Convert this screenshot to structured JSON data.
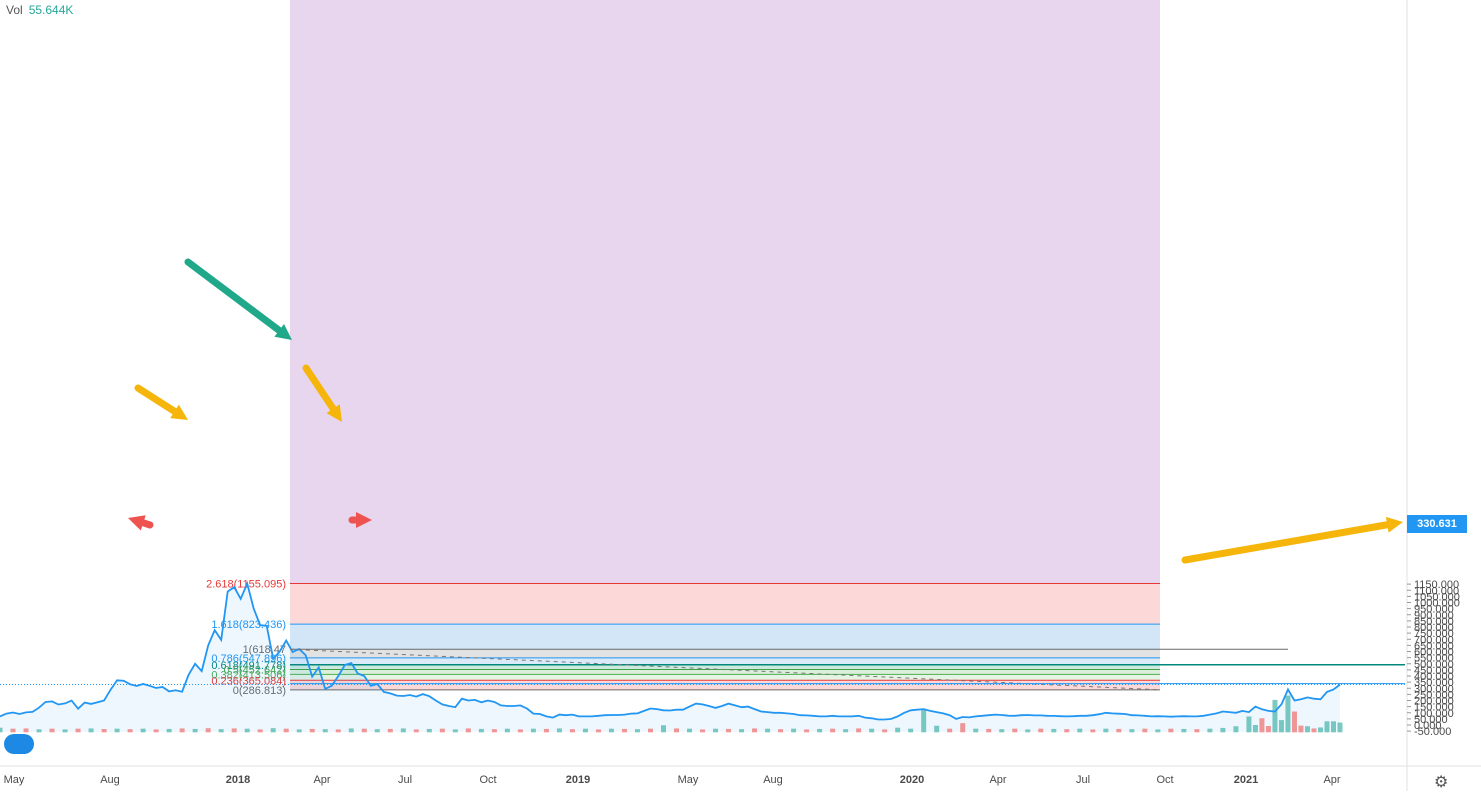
{
  "legend": {
    "label": "Vol",
    "value": "55.644K"
  },
  "current_price": "330.631",
  "colors": {
    "price_line": "#2196f3",
    "vol_up": "#26a69a",
    "vol_down": "#ef5350",
    "arrow_yellow": "#f5b50a",
    "arrow_green": "#1fa88a",
    "arrow_red": "#ef5350"
  },
  "icons": [
    "tradingview-logo-icon",
    "settings-gear-icon"
  ],
  "chart_data": {
    "type": "line",
    "y_axis": {
      "ticks": [
        "1150.000",
        "1100.000",
        "1050.000",
        "1000.000",
        "950.000",
        "900.000",
        "850.000",
        "800.000",
        "750.000",
        "700.000",
        "650.000",
        "600.000",
        "550.000",
        "500.000",
        "450.000",
        "400.000",
        "350.000",
        "300.000",
        "250.000",
        "200.000",
        "150.000",
        "100.000",
        "50.000",
        "0.000",
        "-50.000"
      ],
      "range": [
        -80,
        1180
      ]
    },
    "x_axis": {
      "ticks": [
        "May",
        "Aug",
        "2018",
        "Apr",
        "Jul",
        "Oct",
        "2019",
        "May",
        "Aug",
        "2020",
        "Apr",
        "Jul",
        "Oct",
        "2021",
        "Apr"
      ]
    },
    "fib_levels": [
      {
        "ratio": "2.618",
        "value": 1155.095,
        "label": "2.618(1155.095)",
        "color": "#e53935",
        "fill": "#e8d6ef"
      },
      {
        "ratio": "1.618",
        "value": 823.436,
        "label": "1.618(823.436)",
        "color": "#2196f3",
        "fill": "#fcd8d8"
      },
      {
        "ratio": "1",
        "value": 618.47,
        "label": "1(618.47",
        "color": "#6a6a6a",
        "fill": "#d2e6f8"
      },
      {
        "ratio": "0.786",
        "value": 547.896,
        "label": "0.786(547.896)",
        "color": "#2196f3",
        "fill": "#e2e2e2"
      },
      {
        "ratio": "0.618",
        "value": 491.778,
        "label": "0.618(491.778)",
        "color": "#00897b",
        "fill": "#dbeaf9"
      },
      {
        "ratio": "0.5",
        "value": 452.642,
        "label": "0.5(452.642)",
        "color": "#43a047",
        "fill": "#cdeade"
      },
      {
        "ratio": "0.382",
        "value": 413.506,
        "label": "0.382(413.506)",
        "color": "#4caf50",
        "fill": "#dcefdc"
      },
      {
        "ratio": "0.236",
        "value": 365.084,
        "label": "0.236(365.084)",
        "color": "#e53935",
        "fill": "#e6f4e6"
      },
      {
        "ratio": "0",
        "value": 286.813,
        "label": "0(286.813)",
        "color": "#6a6a6a",
        "fill": "#fcd8d8"
      }
    ],
    "price_series": [
      [
        0,
        70
      ],
      [
        1,
        93
      ],
      [
        2,
        102
      ],
      [
        3,
        90
      ],
      [
        4,
        103
      ],
      [
        5,
        107
      ],
      [
        6,
        141
      ],
      [
        7,
        188
      ],
      [
        8,
        193
      ],
      [
        9,
        167
      ],
      [
        10,
        176
      ],
      [
        11,
        199
      ],
      [
        12,
        133
      ],
      [
        13,
        183
      ],
      [
        14,
        172
      ],
      [
        15,
        186
      ],
      [
        16,
        200
      ],
      [
        17,
        288
      ],
      [
        18,
        365
      ],
      [
        19,
        362
      ],
      [
        20,
        332
      ],
      [
        21,
        318
      ],
      [
        22,
        335
      ],
      [
        23,
        320
      ],
      [
        24,
        302
      ],
      [
        25,
        310
      ],
      [
        26,
        274
      ],
      [
        27,
        283
      ],
      [
        28,
        272
      ],
      [
        29,
        410
      ],
      [
        30,
        500
      ],
      [
        31,
        440
      ],
      [
        32,
        650
      ],
      [
        33,
        775
      ],
      [
        34,
        695
      ],
      [
        35,
        1090
      ],
      [
        36,
        1125
      ],
      [
        37,
        1030
      ],
      [
        38,
        1155
      ],
      [
        39,
        950
      ],
      [
        40,
        815
      ],
      [
        41,
        810
      ],
      [
        42,
        540
      ],
      [
        43,
        600
      ],
      [
        44,
        690
      ],
      [
        45,
        595
      ],
      [
        46,
        620
      ],
      [
        47,
        570
      ],
      [
        48,
        395
      ],
      [
        49,
        470
      ],
      [
        50,
        295
      ],
      [
        51,
        320
      ],
      [
        52,
        400
      ],
      [
        53,
        490
      ],
      [
        54,
        505
      ],
      [
        55,
        420
      ],
      [
        56,
        400
      ],
      [
        57,
        320
      ],
      [
        58,
        335
      ],
      [
        59,
        270
      ],
      [
        60,
        258
      ],
      [
        61,
        240
      ],
      [
        62,
        237
      ],
      [
        63,
        245
      ],
      [
        64,
        232
      ],
      [
        65,
        252
      ],
      [
        66,
        235
      ],
      [
        67,
        200
      ],
      [
        68,
        168
      ],
      [
        69,
        155
      ],
      [
        70,
        145
      ],
      [
        71,
        215
      ],
      [
        72,
        200
      ],
      [
        73,
        205
      ],
      [
        74,
        185
      ],
      [
        75,
        200
      ],
      [
        76,
        188
      ],
      [
        77,
        160
      ],
      [
        78,
        155
      ],
      [
        79,
        155
      ],
      [
        80,
        160
      ],
      [
        81,
        135
      ],
      [
        82,
        93
      ],
      [
        83,
        90
      ],
      [
        84,
        70
      ],
      [
        85,
        60
      ],
      [
        86,
        85
      ],
      [
        87,
        80
      ],
      [
        88,
        85
      ],
      [
        89,
        70
      ],
      [
        90,
        70
      ],
      [
        91,
        70
      ],
      [
        92,
        75
      ],
      [
        93,
        80
      ],
      [
        94,
        82
      ],
      [
        95,
        82
      ],
      [
        96,
        85
      ],
      [
        97,
        93
      ],
      [
        98,
        95
      ],
      [
        99,
        115
      ],
      [
        100,
        135
      ],
      [
        101,
        130
      ],
      [
        102,
        120
      ],
      [
        103,
        118
      ],
      [
        104,
        125
      ],
      [
        105,
        125
      ],
      [
        106,
        150
      ],
      [
        107,
        175
      ],
      [
        108,
        168
      ],
      [
        109,
        155
      ],
      [
        110,
        140
      ],
      [
        111,
        155
      ],
      [
        112,
        175
      ],
      [
        113,
        160
      ],
      [
        114,
        145
      ],
      [
        115,
        150
      ],
      [
        116,
        130
      ],
      [
        117,
        110
      ],
      [
        118,
        105
      ],
      [
        119,
        100
      ],
      [
        120,
        100
      ],
      [
        121,
        95
      ],
      [
        122,
        90
      ],
      [
        123,
        80
      ],
      [
        124,
        78
      ],
      [
        125,
        75
      ],
      [
        126,
        70
      ],
      [
        127,
        70
      ],
      [
        128,
        75
      ],
      [
        129,
        70
      ],
      [
        130,
        70
      ],
      [
        131,
        70
      ],
      [
        132,
        75
      ],
      [
        133,
        60
      ],
      [
        134,
        55
      ],
      [
        135,
        45
      ],
      [
        136,
        45
      ],
      [
        137,
        50
      ],
      [
        138,
        70
      ],
      [
        139,
        100
      ],
      [
        140,
        120
      ],
      [
        141,
        125
      ],
      [
        142,
        130
      ],
      [
        143,
        115
      ],
      [
        144,
        105
      ],
      [
        145,
        95
      ],
      [
        146,
        80
      ],
      [
        147,
        50
      ],
      [
        148,
        65
      ],
      [
        149,
        62
      ],
      [
        150,
        70
      ],
      [
        151,
        75
      ],
      [
        152,
        80
      ],
      [
        153,
        85
      ],
      [
        154,
        82
      ],
      [
        155,
        76
      ],
      [
        156,
        75
      ],
      [
        157,
        80
      ],
      [
        158,
        82
      ],
      [
        159,
        78
      ],
      [
        160,
        78
      ],
      [
        161,
        75
      ],
      [
        162,
        74
      ],
      [
        163,
        72
      ],
      [
        164,
        70
      ],
      [
        165,
        72
      ],
      [
        166,
        75
      ],
      [
        167,
        75
      ],
      [
        168,
        80
      ],
      [
        169,
        88
      ],
      [
        170,
        100
      ],
      [
        171,
        95
      ],
      [
        172,
        92
      ],
      [
        173,
        90
      ],
      [
        174,
        80
      ],
      [
        175,
        78
      ],
      [
        176,
        75
      ],
      [
        177,
        70
      ],
      [
        178,
        72
      ],
      [
        179,
        70
      ],
      [
        180,
        68
      ],
      [
        181,
        70
      ],
      [
        182,
        72
      ],
      [
        183,
        70
      ],
      [
        184,
        70
      ],
      [
        185,
        75
      ],
      [
        186,
        85
      ],
      [
        187,
        95
      ],
      [
        188,
        110
      ],
      [
        189,
        105
      ],
      [
        190,
        100
      ],
      [
        191,
        115
      ],
      [
        192,
        105
      ],
      [
        193,
        150
      ],
      [
        194,
        128
      ],
      [
        195,
        115
      ],
      [
        196,
        110
      ],
      [
        197,
        170
      ],
      [
        198,
        290
      ],
      [
        199,
        200
      ],
      [
        200,
        210
      ],
      [
        201,
        225
      ],
      [
        202,
        215
      ],
      [
        203,
        210
      ],
      [
        204,
        270
      ],
      [
        205,
        290
      ],
      [
        206,
        330
      ]
    ],
    "volume_series": [
      [
        0,
        -22,
        "up"
      ],
      [
        2,
        -30,
        "down"
      ],
      [
        4,
        -28,
        "down"
      ],
      [
        6,
        -35,
        "up"
      ],
      [
        8,
        -30,
        "down"
      ],
      [
        10,
        -36,
        "up"
      ],
      [
        12,
        -30,
        "down"
      ],
      [
        14,
        -28,
        "up"
      ],
      [
        16,
        -33,
        "down"
      ],
      [
        18,
        -30,
        "up"
      ],
      [
        20,
        -34,
        "down"
      ],
      [
        22,
        -30,
        "up"
      ],
      [
        24,
        -36,
        "down"
      ],
      [
        26,
        -32,
        "up"
      ],
      [
        28,
        -28,
        "down"
      ],
      [
        30,
        -32,
        "up"
      ],
      [
        32,
        -26,
        "down"
      ],
      [
        34,
        -34,
        "up"
      ],
      [
        36,
        -28,
        "down"
      ],
      [
        38,
        -30,
        "up"
      ],
      [
        40,
        -36,
        "down"
      ],
      [
        42,
        -26,
        "up"
      ],
      [
        44,
        -30,
        "down"
      ],
      [
        46,
        -36,
        "up"
      ],
      [
        48,
        -32,
        "down"
      ],
      [
        50,
        -34,
        "up"
      ],
      [
        52,
        -36,
        "down"
      ],
      [
        54,
        -28,
        "up"
      ],
      [
        56,
        -30,
        "down"
      ],
      [
        58,
        -34,
        "up"
      ],
      [
        60,
        -32,
        "down"
      ],
      [
        62,
        -28,
        "up"
      ],
      [
        64,
        -36,
        "down"
      ],
      [
        66,
        -32,
        "up"
      ],
      [
        68,
        -30,
        "down"
      ],
      [
        70,
        -36,
        "up"
      ],
      [
        72,
        -28,
        "down"
      ],
      [
        74,
        -32,
        "up"
      ],
      [
        76,
        -34,
        "down"
      ],
      [
        78,
        -30,
        "up"
      ],
      [
        80,
        -36,
        "down"
      ],
      [
        82,
        -30,
        "up"
      ],
      [
        84,
        -32,
        "down"
      ],
      [
        86,
        -28,
        "up"
      ],
      [
        88,
        -34,
        "down"
      ],
      [
        90,
        -30,
        "up"
      ],
      [
        92,
        -36,
        "down"
      ],
      [
        94,
        -30,
        "up"
      ],
      [
        96,
        -32,
        "down"
      ],
      [
        98,
        -34,
        "up"
      ],
      [
        100,
        -30,
        "down"
      ],
      [
        102,
        -2,
        "up"
      ],
      [
        104,
        -28,
        "down"
      ],
      [
        106,
        -30,
        "up"
      ],
      [
        108,
        -36,
        "down"
      ],
      [
        110,
        -30,
        "up"
      ],
      [
        112,
        -32,
        "down"
      ],
      [
        114,
        -34,
        "up"
      ],
      [
        116,
        -28,
        "down"
      ],
      [
        118,
        -30,
        "up"
      ],
      [
        120,
        -34,
        "down"
      ],
      [
        122,
        -30,
        "up"
      ],
      [
        124,
        -36,
        "down"
      ],
      [
        126,
        -32,
        "up"
      ],
      [
        128,
        -30,
        "down"
      ],
      [
        130,
        -34,
        "up"
      ],
      [
        132,
        -28,
        "down"
      ],
      [
        134,
        -30,
        "up"
      ],
      [
        136,
        -36,
        "down"
      ],
      [
        138,
        -22,
        "up"
      ],
      [
        140,
        -30,
        "up"
      ],
      [
        142,
        130,
        "up"
      ],
      [
        144,
        -6,
        "up"
      ],
      [
        146,
        -30,
        "down"
      ],
      [
        148,
        15,
        "down"
      ],
      [
        150,
        -30,
        "up"
      ],
      [
        152,
        -32,
        "down"
      ],
      [
        154,
        -34,
        "up"
      ],
      [
        156,
        -30,
        "down"
      ],
      [
        158,
        -36,
        "up"
      ],
      [
        160,
        -30,
        "down"
      ],
      [
        162,
        -32,
        "up"
      ],
      [
        164,
        -34,
        "down"
      ],
      [
        166,
        -30,
        "up"
      ],
      [
        168,
        -36,
        "down"
      ],
      [
        170,
        -30,
        "up"
      ],
      [
        172,
        -32,
        "down"
      ],
      [
        174,
        -34,
        "up"
      ],
      [
        176,
        -30,
        "down"
      ],
      [
        178,
        -36,
        "up"
      ],
      [
        180,
        -30,
        "down"
      ],
      [
        182,
        -32,
        "up"
      ],
      [
        184,
        -34,
        "down"
      ],
      [
        186,
        -30,
        "up"
      ],
      [
        188,
        -24,
        "up"
      ],
      [
        190,
        -10,
        "up"
      ],
      [
        192,
        70,
        "up"
      ],
      [
        193,
        0,
        "up"
      ],
      [
        194,
        55,
        "down"
      ],
      [
        195,
        -8,
        "down"
      ],
      [
        196,
        205,
        "up"
      ],
      [
        197,
        40,
        "up"
      ],
      [
        198,
        240,
        "up"
      ],
      [
        199,
        110,
        "down"
      ],
      [
        200,
        -5,
        "down"
      ],
      [
        201,
        -10,
        "up"
      ],
      [
        202,
        -28,
        "down"
      ],
      [
        203,
        -20,
        "up"
      ],
      [
        204,
        30,
        "up"
      ],
      [
        205,
        30,
        "up"
      ],
      [
        206,
        20,
        "up"
      ]
    ]
  }
}
